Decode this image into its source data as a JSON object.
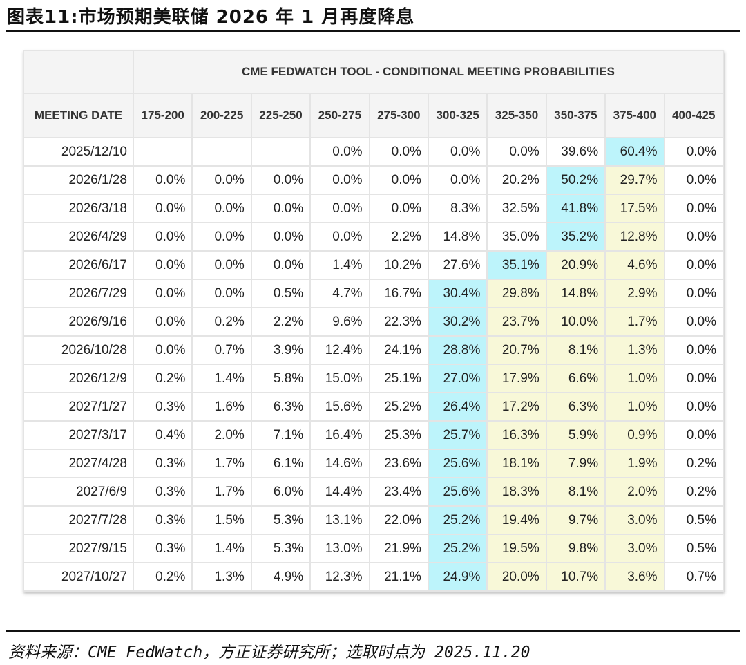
{
  "title": "图表11:市场预期美联储 2026 年 1 月再度降息",
  "table": {
    "super_header": "CME FEDWATCH TOOL - CONDITIONAL MEETING PROBABILITIES",
    "date_header": "MEETING DATE",
    "columns": [
      "175-200",
      "200-225",
      "225-250",
      "250-275",
      "275-300",
      "300-325",
      "325-350",
      "350-375",
      "375-400",
      "400-425"
    ],
    "colors": {
      "max": "#bdf4fb",
      "secondary": "#f8f8d8"
    },
    "rows": [
      {
        "date": "2025/12/10",
        "values": [
          "",
          "",
          "",
          "0.0%",
          "0.0%",
          "0.0%",
          "0.0%",
          "39.6%",
          "60.4%",
          "0.0%"
        ],
        "max_col": 8
      },
      {
        "date": "2026/1/28",
        "values": [
          "0.0%",
          "0.0%",
          "0.0%",
          "0.0%",
          "0.0%",
          "0.0%",
          "20.2%",
          "50.2%",
          "29.7%",
          "0.0%"
        ],
        "max_col": 7
      },
      {
        "date": "2026/3/18",
        "values": [
          "0.0%",
          "0.0%",
          "0.0%",
          "0.0%",
          "0.0%",
          "8.3%",
          "32.5%",
          "41.8%",
          "17.5%",
          "0.0%"
        ],
        "max_col": 7
      },
      {
        "date": "2026/4/29",
        "values": [
          "0.0%",
          "0.0%",
          "0.0%",
          "0.0%",
          "2.2%",
          "14.8%",
          "35.0%",
          "35.2%",
          "12.8%",
          "0.0%"
        ],
        "max_col": 7
      },
      {
        "date": "2026/6/17",
        "values": [
          "0.0%",
          "0.0%",
          "0.0%",
          "1.4%",
          "10.2%",
          "27.6%",
          "35.1%",
          "20.9%",
          "4.6%",
          "0.0%"
        ],
        "max_col": 6
      },
      {
        "date": "2026/7/29",
        "values": [
          "0.0%",
          "0.0%",
          "0.5%",
          "4.7%",
          "16.7%",
          "30.4%",
          "29.8%",
          "14.8%",
          "2.9%",
          "0.0%"
        ],
        "max_col": 5
      },
      {
        "date": "2026/9/16",
        "values": [
          "0.0%",
          "0.2%",
          "2.2%",
          "9.6%",
          "22.3%",
          "30.2%",
          "23.7%",
          "10.0%",
          "1.7%",
          "0.0%"
        ],
        "max_col": 5
      },
      {
        "date": "2026/10/28",
        "values": [
          "0.0%",
          "0.7%",
          "3.9%",
          "12.4%",
          "24.1%",
          "28.8%",
          "20.7%",
          "8.1%",
          "1.3%",
          "0.0%"
        ],
        "max_col": 5
      },
      {
        "date": "2026/12/9",
        "values": [
          "0.2%",
          "1.4%",
          "5.8%",
          "15.0%",
          "25.1%",
          "27.0%",
          "17.9%",
          "6.6%",
          "1.0%",
          "0.0%"
        ],
        "max_col": 5
      },
      {
        "date": "2027/1/27",
        "values": [
          "0.3%",
          "1.6%",
          "6.3%",
          "15.6%",
          "25.2%",
          "26.4%",
          "17.2%",
          "6.3%",
          "1.0%",
          "0.0%"
        ],
        "max_col": 5
      },
      {
        "date": "2027/3/17",
        "values": [
          "0.4%",
          "2.0%",
          "7.1%",
          "16.4%",
          "25.3%",
          "25.7%",
          "16.3%",
          "5.9%",
          "0.9%",
          "0.0%"
        ],
        "max_col": 5
      },
      {
        "date": "2027/4/28",
        "values": [
          "0.3%",
          "1.7%",
          "6.1%",
          "14.6%",
          "23.6%",
          "25.6%",
          "18.1%",
          "7.9%",
          "1.9%",
          "0.2%"
        ],
        "max_col": 5
      },
      {
        "date": "2027/6/9",
        "values": [
          "0.3%",
          "1.7%",
          "6.0%",
          "14.4%",
          "23.4%",
          "25.6%",
          "18.3%",
          "8.1%",
          "2.0%",
          "0.2%"
        ],
        "max_col": 5
      },
      {
        "date": "2027/7/28",
        "values": [
          "0.3%",
          "1.5%",
          "5.3%",
          "13.1%",
          "22.0%",
          "25.2%",
          "19.4%",
          "9.7%",
          "3.0%",
          "0.5%"
        ],
        "max_col": 5
      },
      {
        "date": "2027/9/15",
        "values": [
          "0.3%",
          "1.4%",
          "5.3%",
          "13.0%",
          "21.9%",
          "25.2%",
          "19.5%",
          "9.8%",
          "3.0%",
          "0.5%"
        ],
        "max_col": 5
      },
      {
        "date": "2027/10/27",
        "values": [
          "0.2%",
          "1.3%",
          "4.9%",
          "12.3%",
          "21.1%",
          "24.9%",
          "20.0%",
          "10.7%",
          "3.6%",
          "0.7%"
        ],
        "max_col": 5
      }
    ]
  },
  "source": "资料来源：CME FedWatch，方正证券研究所；选取时点为 2025.11.20"
}
